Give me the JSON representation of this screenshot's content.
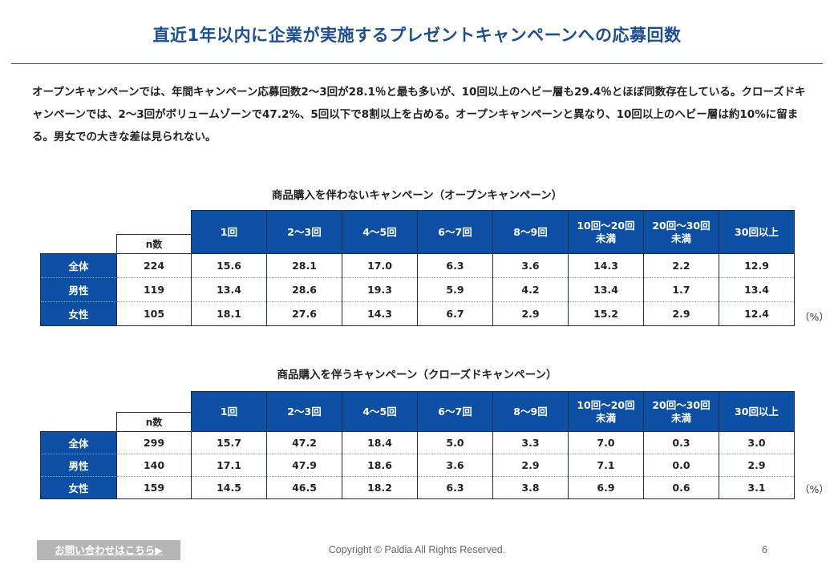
{
  "title": "直近1年以内に企業が実施するプレゼントキャンペーンへの応募回数",
  "summary": "オープンキャンペーンでは、年間キャンペーン応募回数2～3回が28.1％と最も多いが、10回以上のヘビー層も29.4％とほぼ同数存在している。クローズドキャンペーンでは、2～3回がボリュームゾーンで47.2%、5回以下で8割以上を占める。オープンキャンペーンと異なり、10回以上のヘビー層は約10%に留まる。男女での大きな差は見られない。",
  "tables": [
    {
      "caption": "商品購入を伴わないキャンペーン（オープンキャンペーン）",
      "n_label": "n数",
      "columns": [
        "1回",
        "2～3回",
        "4～5回",
        "6～7回",
        "8～9回",
        "10回～20回\n未満",
        "20回～30回\n未満",
        "30回以上"
      ],
      "rows": [
        {
          "label": "全体",
          "n": "224",
          "values": [
            "15.6",
            "28.1",
            "17.0",
            "6.3",
            "3.6",
            "14.3",
            "2.2",
            "12.9"
          ]
        },
        {
          "label": "男性",
          "n": "119",
          "values": [
            "13.4",
            "28.6",
            "19.3",
            "5.9",
            "4.2",
            "13.4",
            "1.7",
            "13.4"
          ]
        },
        {
          "label": "女性",
          "n": "105",
          "values": [
            "18.1",
            "27.6",
            "14.3",
            "6.7",
            "2.9",
            "15.2",
            "2.9",
            "12.4"
          ]
        }
      ],
      "unit": "（%）"
    },
    {
      "caption": "商品購入を伴うキャンペーン（クローズドキャンペーン）",
      "n_label": "n数",
      "columns": [
        "1回",
        "2～3回",
        "4～5回",
        "6～7回",
        "8～9回",
        "10回～20回\n未満",
        "20回～30回\n未満",
        "30回以上"
      ],
      "rows": [
        {
          "label": "全体",
          "n": "299",
          "values": [
            "15.7",
            "47.2",
            "18.4",
            "5.0",
            "3.3",
            "7.0",
            "0.3",
            "3.0"
          ]
        },
        {
          "label": "男性",
          "n": "140",
          "values": [
            "17.1",
            "47.9",
            "18.6",
            "3.6",
            "2.9",
            "7.1",
            "0.0",
            "2.9"
          ]
        },
        {
          "label": "女性",
          "n": "159",
          "values": [
            "14.5",
            "46.5",
            "18.2",
            "6.3",
            "3.8",
            "6.9",
            "0.6",
            "3.1"
          ]
        }
      ],
      "unit": "（%）"
    }
  ],
  "footer": {
    "contact_label": "お問い合わせはこちら▶",
    "copyright": "Copyright © Paldia All Rights Reserved.",
    "page_number": "6"
  },
  "colors": {
    "title": "#1f4e8c",
    "header_fill": "#0d4fa3",
    "contact_button": "#b5b5b5"
  }
}
